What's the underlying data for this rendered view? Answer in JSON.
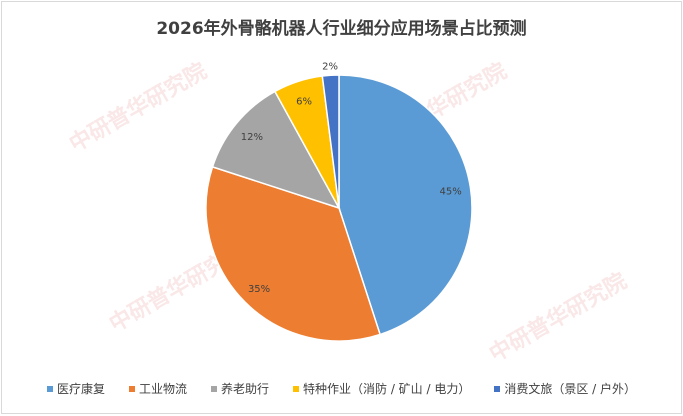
{
  "chart_data": {
    "type": "pie",
    "title": "2026年外骨骼机器人行业细分应用场景占比预测",
    "categories": [
      "医疗康复",
      "工业物流",
      "养老助行",
      "特种作业（消防 / 矿山 / 电力）",
      "消费文旅（景区 / 户外）"
    ],
    "values": [
      45,
      35,
      12,
      6,
      2
    ],
    "labels": [
      "45%",
      "35%",
      "12%",
      "6%",
      "2%"
    ],
    "colors": [
      "#5B9BD5",
      "#ED7D31",
      "#A5A5A5",
      "#FFC000",
      "#4472C4"
    ],
    "start_angle": "top, clockwise",
    "legend_position": "bottom"
  },
  "watermark": "www.ChinaIRN.com 中研普华研究院"
}
